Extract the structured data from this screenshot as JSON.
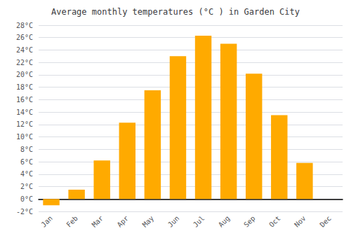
{
  "chart_data": {
    "type": "bar",
    "title": "Average monthly temperatures (°C ) in Garden City",
    "categories": [
      "Jan",
      "Feb",
      "Mar",
      "Apr",
      "May",
      "Jun",
      "Jul",
      "Aug",
      "Sep",
      "Oct",
      "Nov",
      "Dec"
    ],
    "values": [
      -1.0,
      1.5,
      6.2,
      12.3,
      17.5,
      23.0,
      26.3,
      25.0,
      20.2,
      13.5,
      5.8,
      0.0
    ],
    "color": "#FFAA00",
    "ylim": [
      -2,
      28
    ],
    "yticks": [
      {
        "value": -2,
        "label": "-2°C"
      },
      {
        "value": 0,
        "label": "0°C"
      },
      {
        "value": 2,
        "label": "2°C"
      },
      {
        "value": 4,
        "label": "4°C"
      },
      {
        "value": 6,
        "label": "6°C"
      },
      {
        "value": 8,
        "label": "8°C"
      },
      {
        "value": 10,
        "label": "10°C"
      },
      {
        "value": 12,
        "label": "12°C"
      },
      {
        "value": 14,
        "label": "14°C"
      },
      {
        "value": 16,
        "label": "16°C"
      },
      {
        "value": 18,
        "label": "18°C"
      },
      {
        "value": 20,
        "label": "20°C"
      },
      {
        "value": 22,
        "label": "22°C"
      },
      {
        "value": 24,
        "label": "24°C"
      },
      {
        "value": 26,
        "label": "26°C"
      },
      {
        "value": 28,
        "label": "28°C"
      }
    ],
    "grid": true
  }
}
